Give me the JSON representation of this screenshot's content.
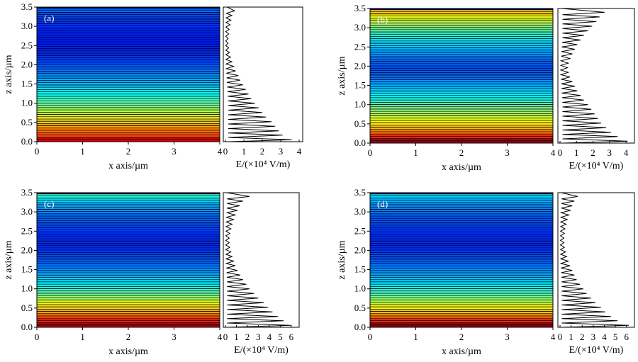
{
  "panels": [
    {
      "label": "(a)",
      "xlabel": "x axis/µm",
      "ylabel": "z axis/µm",
      "elabel": "E/(×10⁴ V/m)",
      "e_max": 4.0,
      "e_ticks": [
        "0",
        "1",
        "2",
        "3",
        "4"
      ]
    },
    {
      "label": "(b)",
      "xlabel": "x axis/µm",
      "ylabel": "z axis/µm",
      "elabel": "E/(×10⁴ V/m)",
      "e_max": 4.3,
      "e_ticks": [
        "0",
        "1",
        "2",
        "3",
        "4"
      ]
    },
    {
      "label": "(c)",
      "xlabel": "x axis/µm",
      "ylabel": "z axis/µm",
      "elabel": "E/(×10⁴ V/m)",
      "e_max": 6.4,
      "e_ticks": [
        "0",
        "1",
        "2",
        "3",
        "4",
        "5",
        "6"
      ]
    },
    {
      "label": "(d)",
      "xlabel": "x axis/µm",
      "ylabel": "z axis/µm",
      "elabel": "E/(×10⁴ V/m)",
      "e_max": 6.4,
      "e_ticks": [
        "0",
        "1",
        "2",
        "3",
        "4",
        "5",
        "6"
      ]
    }
  ],
  "chart_data": [
    {
      "type": "heatmap",
      "panel": "(a)",
      "xlabel": "x axis/µm",
      "ylabel": "z axis/µm",
      "xlim": [
        0,
        4
      ],
      "ylim": [
        0,
        3.5
      ],
      "x_ticks": [
        "0",
        "1",
        "2",
        "3",
        "4"
      ],
      "y_ticks": [
        "0.0",
        "0.5",
        "1.0",
        "1.5",
        "2.0",
        "2.5",
        "3.0",
        "3.5"
      ],
      "colormap": "jet",
      "z": [
        0.05,
        0.17,
        0.28,
        0.4,
        0.52,
        0.64,
        0.76,
        0.88,
        1.0,
        1.12,
        1.24,
        1.36,
        1.48,
        1.6,
        1.72,
        1.84,
        1.96,
        2.08,
        2.2,
        2.32,
        2.44,
        2.56,
        2.68,
        2.8,
        2.92,
        3.04,
        3.16,
        3.28,
        3.4
      ],
      "E": [
        3.6,
        3.1,
        2.9,
        2.7,
        2.5,
        2.2,
        2.0,
        1.8,
        1.6,
        1.4,
        1.25,
        1.1,
        0.95,
        0.8,
        0.7,
        0.55,
        0.45,
        0.35,
        0.28,
        0.22,
        0.18,
        0.15,
        0.15,
        0.18,
        0.2,
        0.25,
        0.3,
        0.35,
        0.5
      ]
    },
    {
      "type": "line",
      "panel": "(a)",
      "xlabel": "E/(×10⁴ V/m)",
      "xlim": [
        0,
        4
      ],
      "ylim": [
        0,
        3.5
      ],
      "x_ticks": [
        "0",
        "1",
        "2",
        "3",
        "4"
      ],
      "z": [
        0.05,
        0.17,
        0.28,
        0.4,
        0.52,
        0.64,
        0.76,
        0.88,
        1.0,
        1.12,
        1.24,
        1.36,
        1.48,
        1.6,
        1.72,
        1.84,
        1.96,
        2.08,
        2.2,
        2.32,
        2.44,
        2.56,
        2.68,
        2.8,
        2.92,
        3.04,
        3.16,
        3.28,
        3.4
      ],
      "E": [
        3.6,
        3.1,
        2.9,
        2.7,
        2.5,
        2.2,
        2.0,
        1.8,
        1.6,
        1.4,
        1.25,
        1.1,
        0.95,
        0.8,
        0.7,
        0.55,
        0.45,
        0.35,
        0.28,
        0.22,
        0.18,
        0.15,
        0.15,
        0.18,
        0.2,
        0.25,
        0.3,
        0.35,
        0.5
      ]
    },
    {
      "type": "heatmap",
      "panel": "(b)",
      "xlabel": "x axis/µm",
      "ylabel": "z axis/µm",
      "xlim": [
        0,
        4
      ],
      "ylim": [
        0,
        3.5
      ],
      "x_ticks": [
        "0",
        "1",
        "2",
        "3",
        "4"
      ],
      "y_ticks": [
        "0.0",
        "0.5",
        "1.0",
        "1.5",
        "2.0",
        "2.5",
        "3.0",
        "3.5"
      ],
      "colormap": "jet",
      "z": [
        0.05,
        0.17,
        0.28,
        0.4,
        0.52,
        0.64,
        0.76,
        0.88,
        1.0,
        1.12,
        1.24,
        1.36,
        1.48,
        1.6,
        1.72,
        1.84,
        1.96,
        2.08,
        2.2,
        2.32,
        2.44,
        2.56,
        2.68,
        2.8,
        2.92,
        3.04,
        3.16,
        3.28,
        3.4
      ],
      "E": [
        4.1,
        3.5,
        3.1,
        2.8,
        2.5,
        2.3,
        2.1,
        1.9,
        1.7,
        1.45,
        1.25,
        1.05,
        0.9,
        0.75,
        0.6,
        0.5,
        0.45,
        0.5,
        0.6,
        0.75,
        0.9,
        1.05,
        1.25,
        1.45,
        1.7,
        1.95,
        2.2,
        2.4,
        2.7
      ]
    },
    {
      "type": "line",
      "panel": "(b)",
      "xlabel": "E/(×10⁴ V/m)",
      "xlim": [
        0,
        4.3
      ],
      "ylim": [
        0,
        3.5
      ],
      "x_ticks": [
        "0",
        "1",
        "2",
        "3",
        "4"
      ],
      "z": [
        0.05,
        0.17,
        0.28,
        0.4,
        0.52,
        0.64,
        0.76,
        0.88,
        1.0,
        1.12,
        1.24,
        1.36,
        1.48,
        1.6,
        1.72,
        1.84,
        1.96,
        2.08,
        2.2,
        2.32,
        2.44,
        2.56,
        2.68,
        2.8,
        2.92,
        3.04,
        3.16,
        3.28,
        3.4
      ],
      "E": [
        4.1,
        3.5,
        3.1,
        2.8,
        2.5,
        2.3,
        2.1,
        1.9,
        1.7,
        1.45,
        1.25,
        1.05,
        0.9,
        0.75,
        0.6,
        0.5,
        0.45,
        0.5,
        0.6,
        0.75,
        0.9,
        1.05,
        1.25,
        1.45,
        1.7,
        1.95,
        2.2,
        2.4,
        2.7
      ]
    },
    {
      "type": "heatmap",
      "panel": "(c)",
      "xlabel": "x axis/µm",
      "ylabel": "z axis/µm",
      "xlim": [
        0,
        4
      ],
      "ylim": [
        0,
        3.5
      ],
      "x_ticks": [
        "0",
        "1",
        "2",
        "3",
        "4"
      ],
      "y_ticks": [
        "0.0",
        "0.5",
        "1.0",
        "1.5",
        "2.0",
        "2.5",
        "3.0",
        "3.5"
      ],
      "colormap": "jet",
      "z": [
        0.05,
        0.17,
        0.28,
        0.4,
        0.52,
        0.64,
        0.76,
        0.88,
        1.0,
        1.12,
        1.24,
        1.36,
        1.48,
        1.6,
        1.72,
        1.84,
        1.96,
        2.08,
        2.2,
        2.32,
        2.44,
        2.56,
        2.68,
        2.8,
        2.92,
        3.04,
        3.16,
        3.28,
        3.4
      ],
      "E": [
        6.0,
        5.3,
        4.8,
        4.3,
        3.9,
        3.5,
        3.0,
        2.6,
        2.2,
        1.9,
        1.6,
        1.35,
        1.1,
        0.9,
        0.75,
        0.6,
        0.5,
        0.4,
        0.35,
        0.35,
        0.4,
        0.5,
        0.6,
        0.75,
        0.9,
        1.1,
        1.3,
        1.6,
        2.2
      ]
    },
    {
      "type": "line",
      "panel": "(c)",
      "xlabel": "E/(×10⁴ V/m)",
      "xlim": [
        0,
        6.4
      ],
      "ylim": [
        0,
        3.5
      ],
      "x_ticks": [
        "0",
        "1",
        "2",
        "3",
        "4",
        "5",
        "6"
      ],
      "z": [
        0.05,
        0.17,
        0.28,
        0.4,
        0.52,
        0.64,
        0.76,
        0.88,
        1.0,
        1.12,
        1.24,
        1.36,
        1.48,
        1.6,
        1.72,
        1.84,
        1.96,
        2.08,
        2.2,
        2.32,
        2.44,
        2.56,
        2.68,
        2.8,
        2.92,
        3.04,
        3.16,
        3.28,
        3.4
      ],
      "E": [
        6.0,
        5.3,
        4.8,
        4.3,
        3.9,
        3.5,
        3.0,
        2.6,
        2.2,
        1.9,
        1.6,
        1.35,
        1.1,
        0.9,
        0.75,
        0.6,
        0.5,
        0.4,
        0.35,
        0.35,
        0.4,
        0.5,
        0.6,
        0.75,
        0.9,
        1.1,
        1.3,
        1.6,
        2.2
      ]
    },
    {
      "type": "heatmap",
      "panel": "(d)",
      "xlabel": "x axis/µm",
      "ylabel": "z axis/µm",
      "xlim": [
        0,
        4
      ],
      "ylim": [
        0,
        3.5
      ],
      "x_ticks": [
        "0",
        "1",
        "2",
        "3",
        "4"
      ],
      "y_ticks": [
        "0.0",
        "0.5",
        "1.0",
        "1.5",
        "2.0",
        "2.5",
        "3.0",
        "3.5"
      ],
      "colormap": "jet",
      "z": [
        0.05,
        0.17,
        0.28,
        0.4,
        0.52,
        0.64,
        0.76,
        0.88,
        1.0,
        1.12,
        1.24,
        1.36,
        1.48,
        1.6,
        1.72,
        1.84,
        1.96,
        2.08,
        2.2,
        2.32,
        2.44,
        2.56,
        2.68,
        2.8,
        2.92,
        3.04,
        3.16,
        3.28,
        3.4
      ],
      "E": [
        6.2,
        5.2,
        4.6,
        4.1,
        3.7,
        3.2,
        2.8,
        2.4,
        2.1,
        1.8,
        1.5,
        1.3,
        1.1,
        0.9,
        0.75,
        0.6,
        0.5,
        0.4,
        0.35,
        0.35,
        0.4,
        0.45,
        0.55,
        0.65,
        0.8,
        0.95,
        1.1,
        1.3,
        1.6
      ]
    },
    {
      "type": "line",
      "panel": "(d)",
      "xlabel": "E/(×10⁴ V/m)",
      "xlim": [
        0,
        6.4
      ],
      "ylim": [
        0,
        3.5
      ],
      "x_ticks": [
        "0",
        "1",
        "2",
        "3",
        "4",
        "5",
        "6"
      ],
      "z": [
        0.05,
        0.17,
        0.28,
        0.4,
        0.52,
        0.64,
        0.76,
        0.88,
        1.0,
        1.12,
        1.24,
        1.36,
        1.48,
        1.6,
        1.72,
        1.84,
        1.96,
        2.08,
        2.2,
        2.32,
        2.44,
        2.56,
        2.68,
        2.8,
        2.92,
        3.04,
        3.16,
        3.28,
        3.4
      ],
      "E": [
        6.2,
        5.2,
        4.6,
        4.1,
        3.7,
        3.2,
        2.8,
        2.4,
        2.1,
        1.8,
        1.5,
        1.3,
        1.1,
        0.9,
        0.75,
        0.6,
        0.5,
        0.4,
        0.35,
        0.35,
        0.4,
        0.45,
        0.55,
        0.65,
        0.8,
        0.95,
        1.1,
        1.3,
        1.6
      ]
    }
  ]
}
